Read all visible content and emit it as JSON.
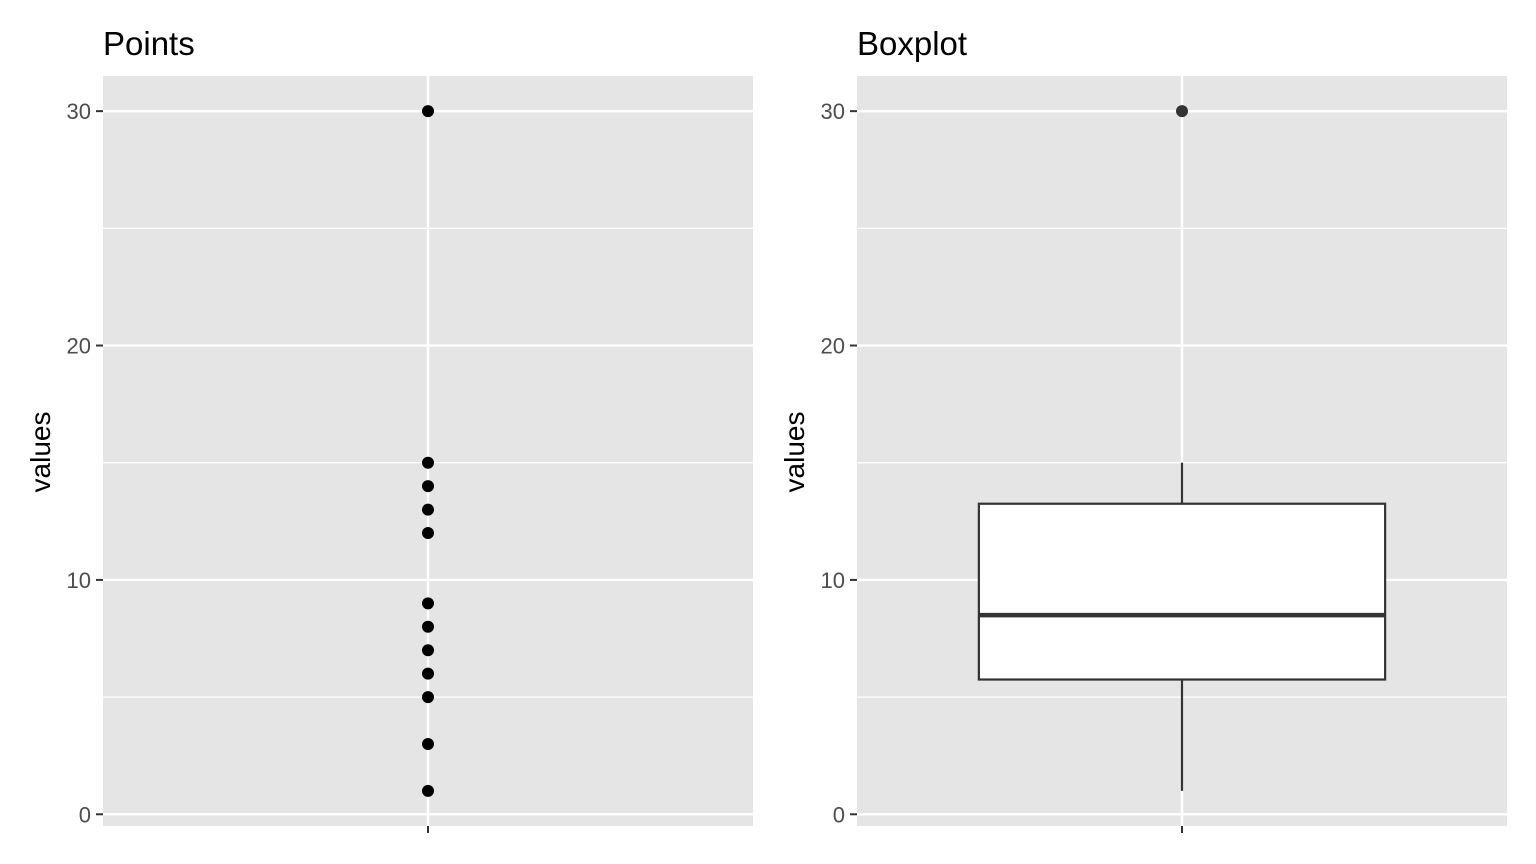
{
  "chart_data": [
    {
      "type": "scatter",
      "title": "Points",
      "xlabel": "",
      "ylabel": "values",
      "ylim": [
        -0.5,
        31.5
      ],
      "yticks": [
        "0",
        "10",
        "20",
        "30"
      ],
      "x_category": "",
      "values": [
        1,
        3,
        5,
        6,
        7,
        8,
        9,
        12,
        13,
        14,
        15,
        30
      ],
      "grid": true,
      "legend": "none"
    },
    {
      "type": "boxplot",
      "title": "Boxplot",
      "xlabel": "",
      "ylabel": "values",
      "ylim": [
        -0.5,
        31.5
      ],
      "yticks": [
        "0",
        "10",
        "20",
        "30"
      ],
      "x_category": "",
      "box": {
        "min": 1,
        "q1": 5.75,
        "median": 8.5,
        "q3": 13.25,
        "max": 15,
        "outliers": [
          30
        ]
      },
      "grid": true,
      "legend": "none"
    }
  ],
  "colors": {
    "panel_background": "#e5e5e5",
    "grid_line": "#ffffff",
    "point": "#000000",
    "box_fill": "#ffffff",
    "box_stroke": "#333333",
    "outlier": "#333333",
    "tick": "#333333",
    "tick_text": "#4d4d4d"
  }
}
